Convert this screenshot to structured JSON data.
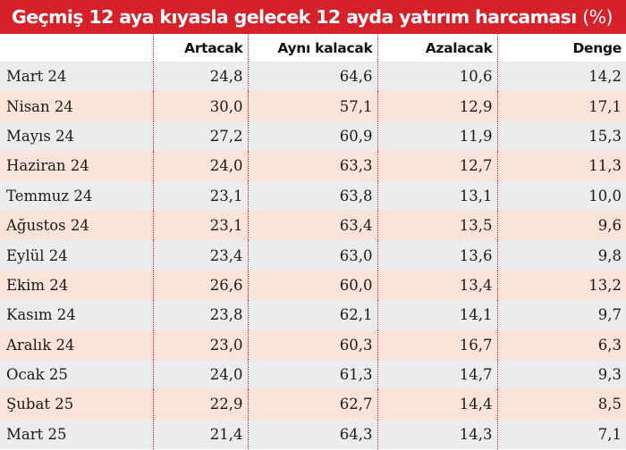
{
  "colors": {
    "title_bg": "#d6202a",
    "row_gray": "#ececec",
    "row_pink": "#fbe3da",
    "divider": "#d6202a"
  },
  "chart_data": {
    "type": "table",
    "title": "Geçmiş 12 aya kıyasla gelecek 12 ayda yatırım harcaması",
    "title_unit": "(%)",
    "columns": [
      "",
      "Artacak",
      "Aynı kalacak",
      "Azalacak",
      "Denge"
    ],
    "rows": [
      [
        "Mart 24",
        "24,8",
        "64,6",
        "10,6",
        "14,2"
      ],
      [
        "Nisan 24",
        "30,0",
        "57,1",
        "12,9",
        "17,1"
      ],
      [
        "Mayıs 24",
        "27,2",
        "60,9",
        "11,9",
        "15,3"
      ],
      [
        "Haziran 24",
        "24,0",
        "63,3",
        "12,7",
        "11,3"
      ],
      [
        "Temmuz 24",
        "23,1",
        "63,8",
        "13,1",
        "10,0"
      ],
      [
        "Ağustos 24",
        "23,1",
        "63,4",
        "13,5",
        "9,6"
      ],
      [
        "Eylül 24",
        "23,4",
        "63,0",
        "13,6",
        "9,8"
      ],
      [
        "Ekim 24",
        "26,6",
        "60,0",
        "13,4",
        "13,2"
      ],
      [
        "Kasım 24",
        "23,8",
        "62,1",
        "14,1",
        "9,7"
      ],
      [
        "Aralık 24",
        "23,0",
        "60,3",
        "16,7",
        "6,3"
      ],
      [
        "Ocak 25",
        "24,0",
        "61,3",
        "14,7",
        "9,3"
      ],
      [
        "Şubat 25",
        "22,9",
        "62,7",
        "14,4",
        "8,5"
      ],
      [
        "Mart 25",
        "21,4",
        "64,3",
        "14,3",
        "7,1"
      ]
    ]
  }
}
